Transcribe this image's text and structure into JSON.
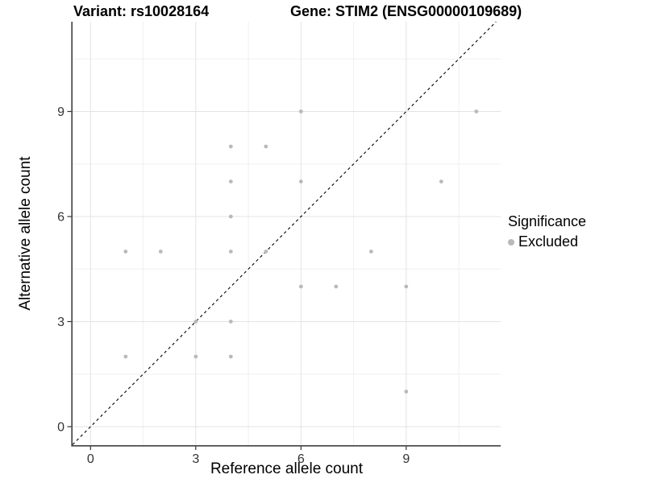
{
  "title": {
    "variant": "Variant: rs10028164",
    "gene": "Gene: STIM2 (ENSG00000109689)"
  },
  "chart_data": {
    "type": "scatter",
    "title": "Variant: rs10028164  /  Gene: STIM2 (ENSG00000109689)",
    "xlabel": "Reference allele count",
    "ylabel": "Alternative allele count",
    "x_ticks": [
      0,
      3,
      6,
      9
    ],
    "y_ticks": [
      0,
      3,
      6,
      9
    ],
    "x_minor_ticks": [
      1.5,
      4.5,
      7.5,
      10.5
    ],
    "y_minor_ticks": [
      1.5,
      4.5,
      7.5,
      10.5
    ],
    "xlim": [
      -0.513,
      11.694
    ],
    "ylim": [
      -0.529,
      11.563
    ],
    "grid": "on",
    "aspect": "equal",
    "series": [
      {
        "name": "Excluded",
        "points": [
          [
            1,
            2
          ],
          [
            1,
            5
          ],
          [
            2,
            5
          ],
          [
            3,
            2
          ],
          [
            3,
            3
          ],
          [
            4,
            2
          ],
          [
            4,
            3
          ],
          [
            4,
            5
          ],
          [
            4,
            6
          ],
          [
            4,
            7
          ],
          [
            4,
            8
          ],
          [
            5,
            5
          ],
          [
            5,
            8
          ],
          [
            6,
            4
          ],
          [
            6,
            7
          ],
          [
            6,
            9
          ],
          [
            7,
            4
          ],
          [
            8,
            5
          ],
          [
            9,
            1
          ],
          [
            9,
            4
          ],
          [
            10,
            7
          ],
          [
            11,
            9
          ]
        ]
      }
    ],
    "identity_line": {
      "equation": "y = x",
      "style": "dashed",
      "color": "#000000"
    },
    "legend": {
      "title": "Significance",
      "position": "right",
      "items": [
        {
          "label": "Excluded",
          "color": "#b9b9b9"
        }
      ]
    },
    "colors": {
      "point": "#b9b9b9",
      "grid_major": "#e3e3e3",
      "grid_minor": "#f0f0f0",
      "axis_line": "#404040",
      "tick_mark": "#333333",
      "tick_label": "#333333"
    }
  }
}
